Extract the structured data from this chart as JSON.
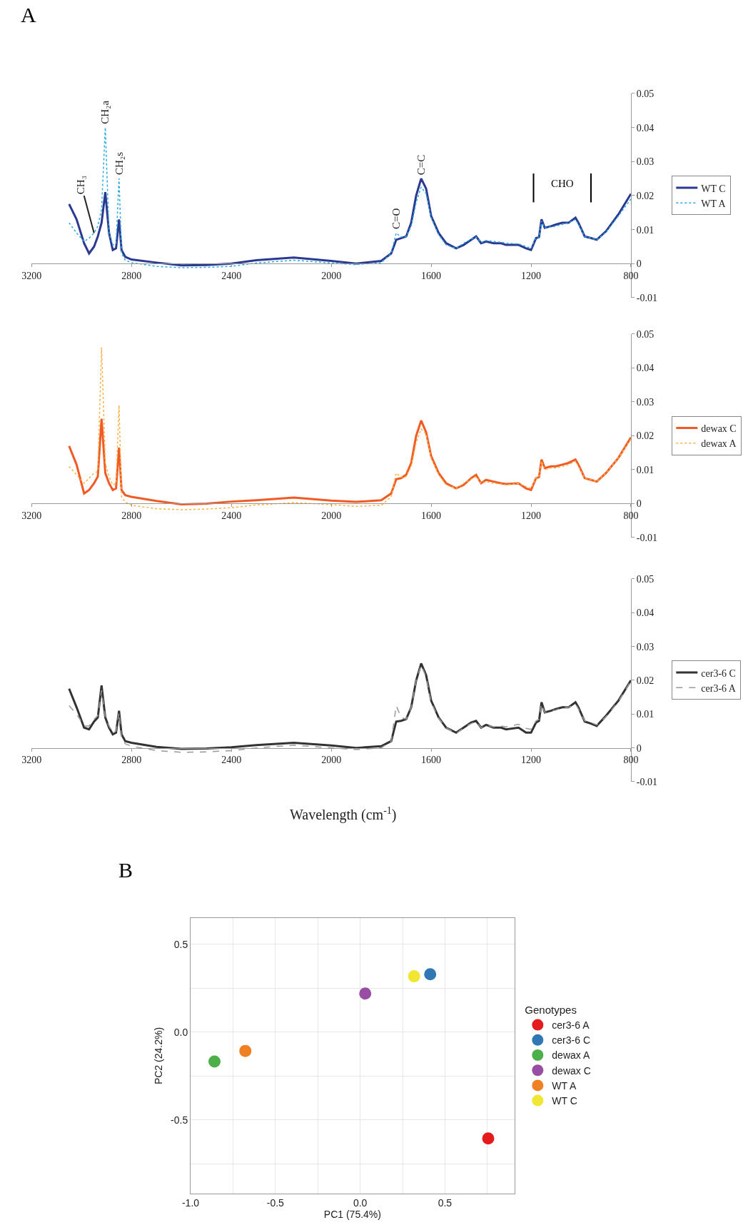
{
  "chart_data": [
    {
      "type": "line",
      "x": [
        3050,
        3020,
        2990,
        2970,
        2950,
        2935,
        2920,
        2905,
        2890,
        2875,
        2862,
        2850,
        2840,
        2825,
        2800,
        2700,
        2600,
        2500,
        2400,
        2300,
        2150,
        2000,
        1900,
        1800,
        1760,
        1740,
        1720,
        1700,
        1680,
        1660,
        1640,
        1620,
        1600,
        1570,
        1540,
        1500,
        1470,
        1440,
        1420,
        1400,
        1380,
        1350,
        1320,
        1300,
        1250,
        1220,
        1200,
        1180,
        1168,
        1158,
        1145,
        1120,
        1100,
        1075,
        1050,
        1022,
        1010,
        985,
        960,
        937,
        900,
        850,
        800
      ],
      "series": [
        {
          "name": "WT C",
          "color": "#2b3990",
          "line_style": "solid",
          "values": [
            0.0175,
            0.013,
            0.006,
            0.003,
            0.005,
            0.008,
            0.012,
            0.021,
            0.009,
            0.004,
            0.0045,
            0.013,
            0.004,
            0.002,
            0.0012,
            0.0003,
            -0.0005,
            -0.0004,
            0,
            0.001,
            0.0018,
            0.0008,
            0,
            0.0008,
            0.003,
            0.007,
            0.0075,
            0.008,
            0.012,
            0.02,
            0.025,
            0.022,
            0.014,
            0.009,
            0.006,
            0.0045,
            0.0055,
            0.007,
            0.008,
            0.006,
            0.0065,
            0.006,
            0.006,
            0.0055,
            0.0055,
            0.0045,
            0.004,
            0.0075,
            0.0078,
            0.013,
            0.0105,
            0.011,
            0.0115,
            0.012,
            0.012,
            0.0135,
            0.012,
            0.008,
            0.0075,
            0.007,
            0.0095,
            0.0145,
            0.0205
          ]
        },
        {
          "name": "WT A",
          "color": "#29abe2",
          "line_style": "dotted",
          "values": [
            0.012,
            0.009,
            0.0065,
            0.0075,
            0.009,
            0.011,
            0.016,
            0.04,
            0.009,
            0.0055,
            0.006,
            0.025,
            0.003,
            0.001,
            0.0003,
            -0.0008,
            -0.0012,
            -0.0011,
            -0.0008,
            0.0002,
            0.001,
            0.0002,
            -0.0003,
            0.0003,
            0.003,
            0.009,
            0.0078,
            0.008,
            0.011,
            0.018,
            0.0225,
            0.0205,
            0.0135,
            0.0085,
            0.0055,
            0.0045,
            0.006,
            0.0072,
            0.0078,
            0.0062,
            0.0068,
            0.0065,
            0.0063,
            0.006,
            0.0058,
            0.005,
            0.0045,
            0.0078,
            0.0078,
            0.0125,
            0.0105,
            0.0108,
            0.011,
            0.0115,
            0.012,
            0.013,
            0.0115,
            0.008,
            0.0075,
            0.007,
            0.0092,
            0.014,
            0.019
          ]
        }
      ],
      "xlim": [
        3200,
        800
      ],
      "xticks": [
        3200,
        2800,
        2400,
        2000,
        1600,
        1200,
        800
      ],
      "ylim": [
        -0.01,
        0.05
      ],
      "yticks": [
        0.05,
        0.04,
        0.03,
        0.02,
        0.01,
        0,
        -0.01
      ],
      "legend": "right",
      "annotations": [
        "A",
        {
          "text": "CH₃",
          "x": 2950,
          "y": 0.009
        },
        {
          "text": "CH₂a",
          "x": 2905,
          "y": 0.04
        },
        {
          "text": "CH₂s",
          "x": 2850,
          "y": 0.025
        },
        {
          "text": "C=O",
          "x": 1740,
          "y": 0.009
        },
        {
          "text": "C=C",
          "x": 1640,
          "y": 0.025
        },
        "CHO"
      ],
      "ref_lines": [
        {
          "axis": "x",
          "value": 1190,
          "color": "#000000"
        },
        {
          "axis": "x",
          "value": 960,
          "color": "#000000"
        }
      ]
    },
    {
      "type": "line",
      "x": [
        3050,
        3020,
        2990,
        2970,
        2950,
        2935,
        2920,
        2905,
        2890,
        2875,
        2862,
        2850,
        2840,
        2825,
        2800,
        2700,
        2600,
        2500,
        2400,
        2300,
        2150,
        2000,
        1900,
        1800,
        1760,
        1740,
        1720,
        1700,
        1680,
        1660,
        1640,
        1620,
        1600,
        1570,
        1540,
        1500,
        1470,
        1440,
        1420,
        1400,
        1380,
        1350,
        1320,
        1300,
        1250,
        1220,
        1200,
        1180,
        1168,
        1158,
        1145,
        1120,
        1100,
        1075,
        1050,
        1022,
        1010,
        985,
        960,
        937,
        900,
        850,
        800
      ],
      "series": [
        {
          "name": "dewax C",
          "color": "#f15a24",
          "line_style": "solid",
          "values": [
            0.017,
            0.0115,
            0.003,
            0.004,
            0.006,
            0.008,
            0.025,
            0.009,
            0.006,
            0.004,
            0.0045,
            0.0165,
            0.004,
            0.0025,
            0.002,
            0.0008,
            -0.0002,
            0,
            0.0006,
            0.001,
            0.0018,
            0.0009,
            0.0005,
            0.001,
            0.003,
            0.0072,
            0.0075,
            0.0085,
            0.012,
            0.02,
            0.0245,
            0.021,
            0.014,
            0.009,
            0.006,
            0.0045,
            0.0055,
            0.0075,
            0.0085,
            0.006,
            0.007,
            0.0065,
            0.006,
            0.0058,
            0.006,
            0.0045,
            0.004,
            0.0075,
            0.0078,
            0.013,
            0.0105,
            0.011,
            0.011,
            0.0115,
            0.012,
            0.013,
            0.0115,
            0.0075,
            0.007,
            0.0065,
            0.009,
            0.0135,
            0.0195
          ]
        },
        {
          "name": "dewax A",
          "color": "#fbb040",
          "line_style": "dotted",
          "values": [
            0.011,
            0.0085,
            0.006,
            0.0075,
            0.009,
            0.0095,
            0.046,
            0.012,
            0.008,
            0.0055,
            0.006,
            0.029,
            0.002,
            0.0005,
            -0.0005,
            -0.0015,
            -0.0018,
            -0.0016,
            -0.0012,
            -0.0004,
            0.0003,
            -0.0003,
            -0.0008,
            -0.0005,
            0.002,
            0.009,
            0.0078,
            0.008,
            0.011,
            0.018,
            0.022,
            0.0205,
            0.0135,
            0.0085,
            0.0055,
            0.0045,
            0.006,
            0.0072,
            0.008,
            0.006,
            0.0065,
            0.006,
            0.0058,
            0.0055,
            0.006,
            0.005,
            0.0045,
            0.0075,
            0.0078,
            0.0125,
            0.01,
            0.0105,
            0.0105,
            0.011,
            0.0115,
            0.0125,
            0.011,
            0.0075,
            0.007,
            0.0065,
            0.009,
            0.0135,
            0.019
          ]
        }
      ],
      "xlim": [
        3200,
        800
      ],
      "xticks": [
        3200,
        2800,
        2400,
        2000,
        1600,
        1200,
        800
      ],
      "ylim": [
        -0.01,
        0.05
      ],
      "yticks": [
        0.05,
        0.04,
        0.03,
        0.02,
        0.01,
        0,
        -0.01
      ],
      "legend": "right"
    },
    {
      "type": "line",
      "x": [
        3050,
        3020,
        2990,
        2970,
        2950,
        2935,
        2920,
        2905,
        2890,
        2875,
        2862,
        2850,
        2840,
        2825,
        2800,
        2700,
        2600,
        2500,
        2400,
        2300,
        2150,
        2000,
        1900,
        1800,
        1760,
        1740,
        1720,
        1700,
        1680,
        1660,
        1640,
        1620,
        1600,
        1570,
        1540,
        1500,
        1470,
        1440,
        1420,
        1400,
        1380,
        1350,
        1320,
        1300,
        1250,
        1220,
        1200,
        1180,
        1168,
        1158,
        1145,
        1120,
        1100,
        1075,
        1050,
        1022,
        1010,
        985,
        960,
        937,
        900,
        850,
        800
      ],
      "series": [
        {
          "name": "cer3-6 C",
          "color": "#333333",
          "line_style": "solid",
          "values": [
            0.0175,
            0.012,
            0.006,
            0.0055,
            0.0078,
            0.009,
            0.0185,
            0.009,
            0.006,
            0.004,
            0.0045,
            0.011,
            0.004,
            0.002,
            0.0015,
            0.0003,
            -0.0003,
            -0.0002,
            0.0002,
            0.0008,
            0.0015,
            0.0007,
            0,
            0.0005,
            0.002,
            0.0078,
            0.008,
            0.0085,
            0.012,
            0.02,
            0.025,
            0.0215,
            0.014,
            0.009,
            0.006,
            0.0045,
            0.006,
            0.0075,
            0.008,
            0.006,
            0.0068,
            0.006,
            0.006,
            0.0055,
            0.006,
            0.0045,
            0.0045,
            0.0075,
            0.008,
            0.0135,
            0.0105,
            0.011,
            0.0115,
            0.012,
            0.012,
            0.0135,
            0.012,
            0.0078,
            0.0072,
            0.0065,
            0.0095,
            0.014,
            0.02
          ]
        },
        {
          "name": "cer3-6 A",
          "color": "#999999",
          "line_style": "dashed",
          "values": [
            0.0125,
            0.01,
            0.0065,
            0.0065,
            0.0085,
            0.0095,
            0.017,
            0.009,
            0.0065,
            0.0045,
            0.005,
            0.0105,
            0.003,
            0.0012,
            0.0005,
            -0.0008,
            -0.0013,
            -0.0012,
            -0.0008,
            0,
            0.0008,
            0,
            -0.0005,
            0,
            0.002,
            0.0125,
            0.009,
            0.0085,
            0.012,
            0.02,
            0.0245,
            0.021,
            0.0135,
            0.0088,
            0.006,
            0.0042,
            0.006,
            0.0072,
            0.0078,
            0.006,
            0.0068,
            0.0062,
            0.0065,
            0.0062,
            0.007,
            0.0058,
            0.0055,
            0.008,
            0.0085,
            0.013,
            0.0105,
            0.011,
            0.0112,
            0.012,
            0.012,
            0.013,
            0.0115,
            0.008,
            0.0075,
            0.0068,
            0.0092,
            0.0138,
            0.0198
          ]
        }
      ],
      "xlim": [
        3200,
        800
      ],
      "xticks": [
        3200,
        2800,
        2400,
        2000,
        1600,
        1200,
        800
      ],
      "ylim": [
        -0.01,
        0.05
      ],
      "yticks": [
        0.05,
        0.04,
        0.03,
        0.02,
        0.01,
        0,
        -0.01
      ],
      "xlabel": "Wavelength (cm$^{-1}$)",
      "legend": "right"
    },
    {
      "type": "scatter",
      "xlabel": "PC1 (75.4%)",
      "ylabel": "PC2 (24.2%)",
      "legend_title": "Genotypes",
      "marker": "circle",
      "grid": true,
      "legend": "right",
      "series": [
        {
          "name": "cer3-6 A",
          "color": "#e41a1c",
          "x": [
            0.755
          ],
          "values": [
            -0.606
          ]
        },
        {
          "name": "cer3-6 C",
          "color": "#2f78b4",
          "x": [
            0.413
          ],
          "values": [
            0.33
          ]
        },
        {
          "name": "dewax A",
          "color": "#4daf4a",
          "x": [
            -0.859
          ],
          "values": [
            -0.167
          ]
        },
        {
          "name": "dewax C",
          "color": "#984ea3",
          "x": [
            0.03
          ],
          "values": [
            0.22
          ]
        },
        {
          "name": "WT A",
          "color": "#f08024",
          "x": [
            -0.677
          ],
          "values": [
            -0.107
          ]
        },
        {
          "name": "WT C",
          "color": "#f2e635",
          "x": [
            0.318
          ],
          "values": [
            0.318
          ]
        }
      ],
      "xlim": [
        -1.0,
        0.91
      ],
      "xticks": [
        {
          "value": -1,
          "label": "-1.0"
        },
        {
          "value": -0.75,
          "label": null
        },
        -0.5,
        {
          "value": -0.25,
          "label": null
        },
        {
          "value": 0,
          "label": "0.0"
        },
        {
          "value": 0.25,
          "label": null
        },
        0.5,
        {
          "value": 0.75,
          "label": null
        }
      ],
      "ylim": [
        -0.92,
        0.65
      ],
      "yticks": [
        {
          "value": -0.75,
          "label": null
        },
        -0.5,
        {
          "value": -0.25,
          "label": null
        },
        {
          "value": 0,
          "label": "0.0"
        },
        {
          "value": 0.25,
          "label": null
        },
        0.5
      ],
      "annotations": [
        "B"
      ]
    }
  ]
}
